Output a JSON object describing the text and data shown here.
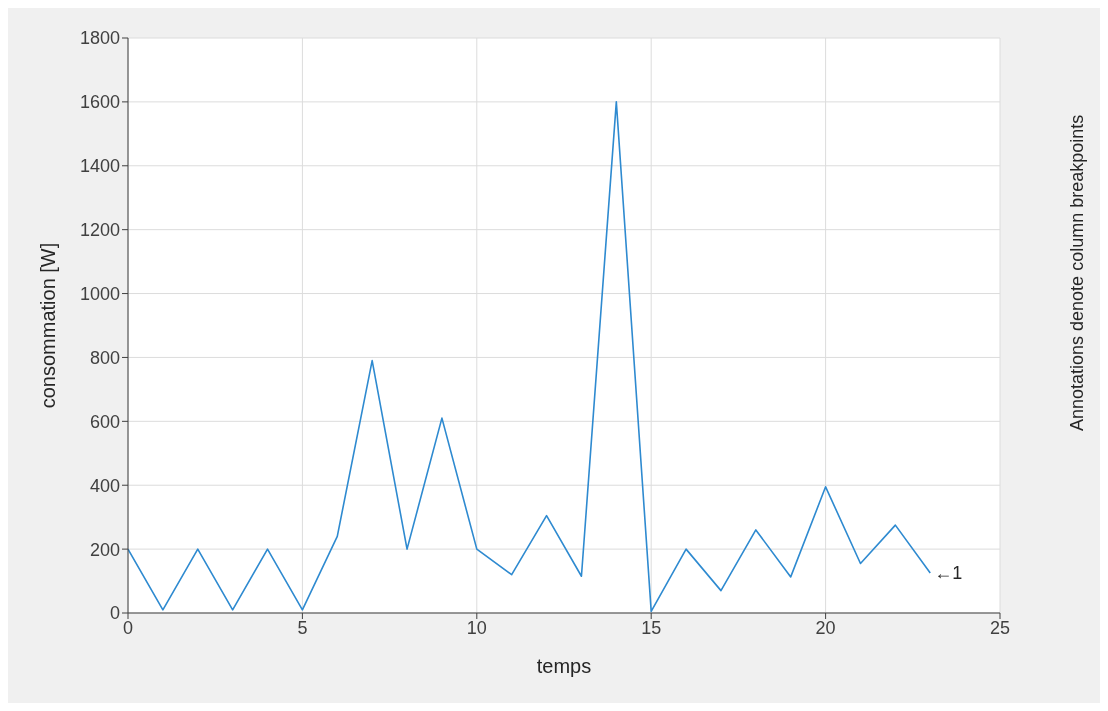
{
  "chart_data": {
    "type": "line",
    "xlabel": "temps",
    "ylabel": "consommation [W]",
    "x": [
      0,
      1,
      2,
      3,
      4,
      5,
      6,
      7,
      8,
      9,
      10,
      11,
      12,
      13,
      14,
      15,
      16,
      17,
      18,
      19,
      20,
      21,
      22,
      23
    ],
    "series": [
      {
        "color": "#2e8ad0",
        "values": [
          200,
          10,
          200,
          10,
          200,
          10,
          240,
          790,
          200,
          610,
          200,
          120,
          305,
          115,
          1600,
          5,
          200,
          70,
          260,
          113,
          395,
          155,
          275,
          125
        ]
      }
    ],
    "xlim": [
      0,
      25
    ],
    "xticks": [
      0,
      5,
      10,
      15,
      20,
      25
    ],
    "ylim": [
      0,
      1800
    ],
    "yticks": [
      0,
      200,
      400,
      600,
      800,
      1000,
      1200,
      1400,
      1600,
      1800
    ],
    "grid": true,
    "marker": "none",
    "line_style": "solid",
    "annotations": [
      {
        "text": "←1",
        "x": 23,
        "y": 125
      },
      "Annotations denote column breakpoints"
    ]
  }
}
